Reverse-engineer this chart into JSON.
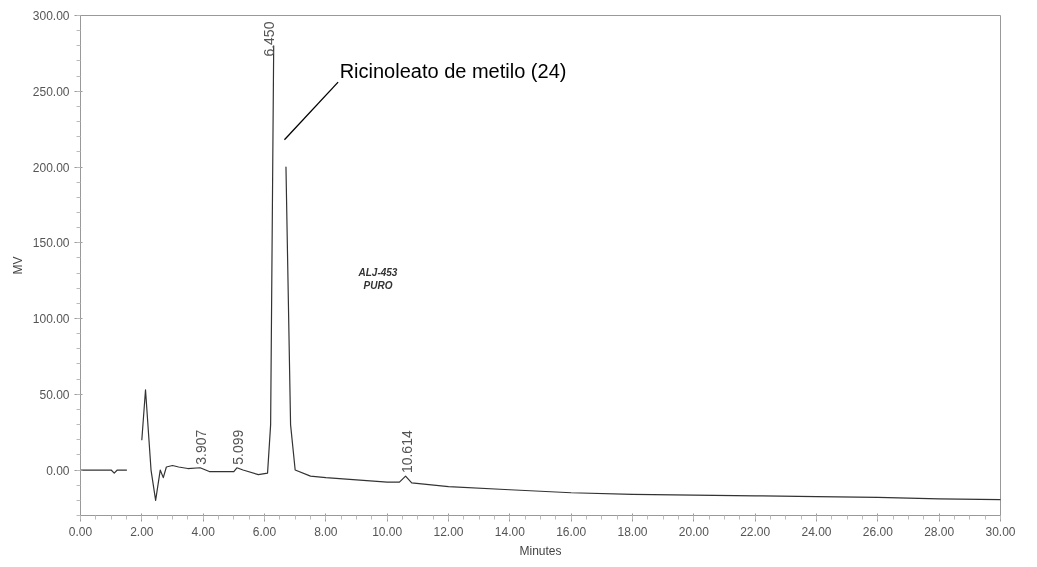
{
  "chart_data": {
    "type": "line",
    "xlabel": "Minutes",
    "ylabel": "MV",
    "x": [
      0,
      1.0,
      1.1,
      1.2,
      1.5,
      1.55,
      1.85,
      2.0,
      2.12,
      2.3,
      2.45,
      2.6,
      2.7,
      2.8,
      3.0,
      3.2,
      3.5,
      3.9,
      4.2,
      5.0,
      5.1,
      5.3,
      5.8,
      6.1,
      6.2,
      6.3,
      6.45,
      6.6,
      6.7,
      6.85,
      7.0,
      7.5,
      8,
      10,
      10.4,
      10.6,
      10.8,
      12,
      14,
      16,
      18,
      20,
      22,
      24,
      26,
      28,
      30
    ],
    "values": [
      0,
      0,
      -2,
      0,
      0,
      null,
      null,
      20,
      53,
      0,
      -20,
      0,
      -5,
      2,
      3,
      2,
      1,
      1.5,
      -1,
      -1,
      1.5,
      0,
      -3,
      -2,
      30,
      280,
      null,
      null,
      200,
      30,
      0,
      -4,
      -5,
      -8,
      -8,
      -4,
      -8.5,
      -11,
      -13,
      -15,
      -16,
      -16.5,
      -17,
      -17.5,
      -18,
      -19,
      -19.5
    ],
    "color": "#333333",
    "line_style": "solid",
    "marker": "none",
    "grid": false,
    "xlim": [
      0,
      30
    ],
    "ylim": [
      -30,
      300
    ],
    "xticks": [
      {
        "value": 0,
        "label": "0.00"
      },
      {
        "value": 2,
        "label": "2.00"
      },
      {
        "value": 4,
        "label": "4.00"
      },
      {
        "value": 6,
        "label": "6.00"
      },
      {
        "value": 8,
        "label": "8.00"
      },
      {
        "value": 10,
        "label": "10.00"
      },
      {
        "value": 12,
        "label": "12.00"
      },
      {
        "value": 14,
        "label": "14.00"
      },
      {
        "value": 16,
        "label": "16.00"
      },
      {
        "value": 18,
        "label": "18.00"
      },
      {
        "value": 20,
        "label": "20.00"
      },
      {
        "value": 22,
        "label": "22.00"
      },
      {
        "value": 24,
        "label": "24.00"
      },
      {
        "value": 26,
        "label": "26.00"
      },
      {
        "value": 28,
        "label": "28.00"
      },
      {
        "value": 30,
        "label": "30.00"
      }
    ],
    "yticks": [
      {
        "value": 0,
        "label": "0.00"
      },
      {
        "value": 50,
        "label": "50.00"
      },
      {
        "value": 100,
        "label": "100.00"
      },
      {
        "value": 150,
        "label": "150.00"
      },
      {
        "value": 200,
        "label": "200.00"
      },
      {
        "value": 250,
        "label": "250.00"
      },
      {
        "value": 300,
        "label": "300.00"
      }
    ],
    "annotations": [
      {
        "text": "3.907",
        "x": 3.907,
        "y": 1.5
      },
      {
        "text": "5.099",
        "x": 5.099,
        "y": 1.5
      },
      "6.450",
      {
        "text": "10.614",
        "x": 10.614,
        "y": -4
      },
      "Ricinoleato de metilo (24)",
      "ALJ-453\nPURO"
    ]
  }
}
